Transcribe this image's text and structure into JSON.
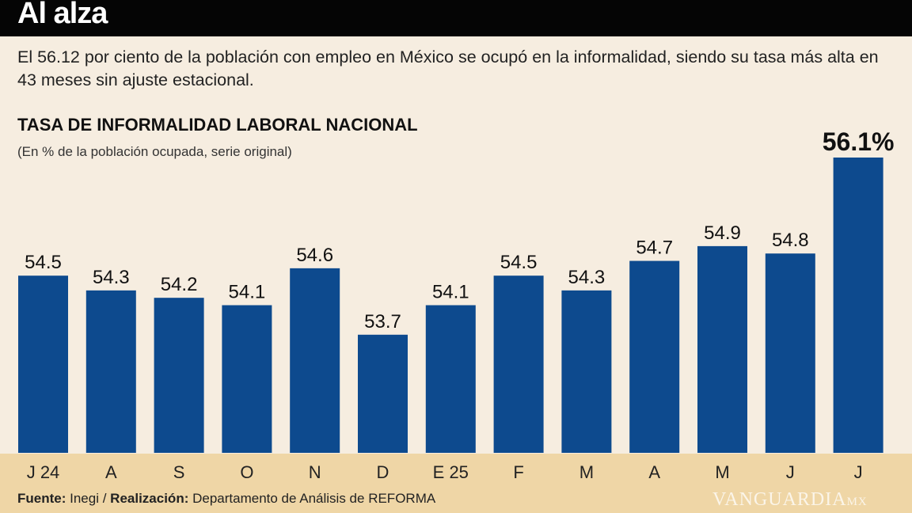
{
  "header": {
    "title": "Al alza"
  },
  "intro": "El 56.12 por ciento de la población con empleo en México se ocupó en la informalidad, siendo su tasa más alta en 43 meses sin ajuste estacional.",
  "footer": {
    "source_label": "Fuente:",
    "source": "Inegi /",
    "made_label": "Realización:",
    "made": "Departamento de Análisis de REFORMA"
  },
  "watermark": {
    "main": "VANGUARDIA",
    "suffix": "MX"
  },
  "colors": {
    "bar": "#0d4a8e",
    "header": "#050505",
    "band": "#efd6a6",
    "background": "#f6ede0"
  },
  "chart_data": {
    "type": "bar",
    "title": "TASA DE INFORMALIDAD LABORAL NACIONAL",
    "subtitle": "(En % de la población ocupada, serie original)",
    "categories": [
      "J 24",
      "A",
      "S",
      "O",
      "N",
      "D",
      "E 25",
      "F",
      "M",
      "A",
      "M",
      "J",
      "J"
    ],
    "values": [
      54.5,
      54.3,
      54.2,
      54.1,
      54.6,
      53.7,
      54.1,
      54.5,
      54.3,
      54.7,
      54.9,
      54.8,
      56.1
    ],
    "labels": [
      "54.5",
      "54.3",
      "54.2",
      "54.1",
      "54.6",
      "53.7",
      "54.1",
      "54.5",
      "54.3",
      "54.7",
      "54.9",
      "54.8",
      "56.1%"
    ],
    "ylim": [
      52.1,
      56.1
    ],
    "grid": false,
    "legend": "none"
  }
}
